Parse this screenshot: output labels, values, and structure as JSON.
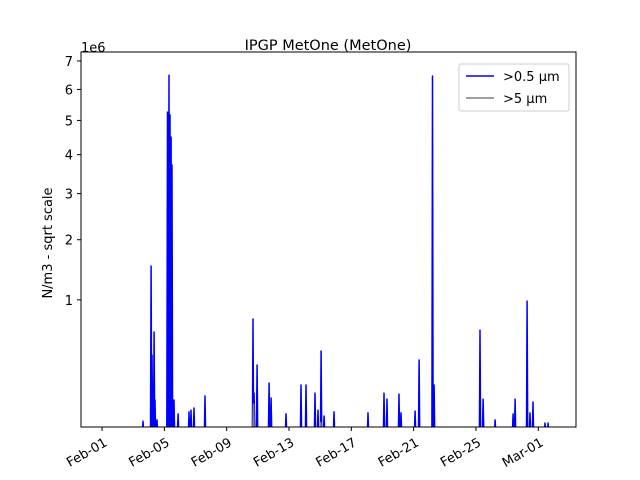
{
  "chart_data": {
    "type": "line",
    "title": "IPGP MetOne (MetOne)",
    "xlabel": "",
    "ylabel": "N/m3 - sqrt scale",
    "y_scale": "sqrt",
    "y_offset_label": "1e6",
    "x_units": "day of February (1 = Feb-01 00:00)",
    "xlim": [
      -0.35,
      31.42
    ],
    "ylim": [
      15400,
      7330000
    ],
    "x_ticks": [
      {
        "value": 1,
        "label": "Feb-01"
      },
      {
        "value": 5,
        "label": "Feb-05"
      },
      {
        "value": 9,
        "label": "Feb-09"
      },
      {
        "value": 13,
        "label": "Feb-13"
      },
      {
        "value": 17,
        "label": "Feb-17"
      },
      {
        "value": 21,
        "label": "Feb-21"
      },
      {
        "value": 25,
        "label": "Feb-25"
      },
      {
        "value": 29,
        "label": "Mar-01"
      }
    ],
    "y_ticks": [
      {
        "value": 1000000,
        "label": "1"
      },
      {
        "value": 2000000,
        "label": "2"
      },
      {
        "value": 3000000,
        "label": "3"
      },
      {
        "value": 4000000,
        "label": "4"
      },
      {
        "value": 5000000,
        "label": "5"
      },
      {
        "value": 6000000,
        "label": "6"
      },
      {
        "value": 7000000,
        "label": "7"
      }
    ],
    "grid": false,
    "legend_position": "top-right",
    "series": [
      {
        "name": ">0.5 µm",
        "color": "#0000ff",
        "peaks": [
          [
            3.63,
            27000
          ],
          [
            4.15,
            1520000
          ],
          [
            4.21,
            384000
          ],
          [
            4.34,
            606000
          ],
          [
            4.4,
            96000
          ],
          [
            4.53,
            30000
          ],
          [
            5.2,
            5260000
          ],
          [
            5.3,
            6490000
          ],
          [
            5.36,
            5170000
          ],
          [
            5.43,
            4500000
          ],
          [
            5.49,
            3720000
          ],
          [
            5.62,
            96000
          ],
          [
            5.88,
            46000
          ],
          [
            6.58,
            52000
          ],
          [
            6.71,
            58000
          ],
          [
            6.9,
            65000
          ],
          [
            7.61,
            114000
          ],
          [
            10.69,
            753000
          ],
          [
            10.76,
            128000
          ],
          [
            10.95,
            304000
          ],
          [
            11.72,
            182000
          ],
          [
            11.85,
            105000
          ],
          [
            12.81,
            46000
          ],
          [
            13.77,
            171000
          ],
          [
            14.09,
            171000
          ],
          [
            14.67,
            128000
          ],
          [
            14.86,
            58000
          ],
          [
            15.06,
            419000
          ],
          [
            15.25,
            40000
          ],
          [
            15.89,
            52000
          ],
          [
            18.07,
            49000
          ],
          [
            19.1,
            128000
          ],
          [
            19.29,
            100000
          ],
          [
            20.06,
            123000
          ],
          [
            20.19,
            49000
          ],
          [
            21.09,
            55000
          ],
          [
            21.35,
            343000
          ],
          [
            22.21,
            6460000
          ],
          [
            22.31,
            171000
          ],
          [
            25.26,
            627000
          ],
          [
            25.46,
            100000
          ],
          [
            26.23,
            30000
          ],
          [
            27.38,
            46000
          ],
          [
            27.51,
            100000
          ],
          [
            28.28,
            983000
          ],
          [
            28.47,
            49000
          ],
          [
            28.66,
            88000
          ],
          [
            29.43,
            23000
          ],
          [
            29.63,
            23000
          ]
        ]
      },
      {
        "name": ">5 µm",
        "color": "#808080",
        "peaks": [
          [
            10.72,
            80000
          ],
          [
            15.04,
            24000
          ]
        ]
      }
    ]
  }
}
